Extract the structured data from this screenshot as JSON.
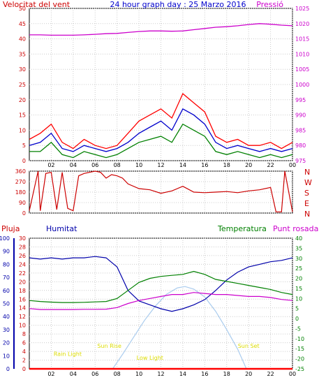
{
  "chart_data": [
    {
      "type": "line",
      "id": "wind-pressure",
      "title": "24 hour graph day : 25 Marzo 2016",
      "ylabel_left": "Velocitat del vent",
      "ylabel_right": "Pressió",
      "x_ticks": [
        "02",
        "04",
        "06",
        "08",
        "10",
        "12",
        "14",
        "16",
        "18",
        "20",
        "22",
        "00"
      ],
      "ylim_left": [
        0,
        50
      ],
      "ylim_right": [
        975,
        1025
      ],
      "yticks_left": [
        0,
        5,
        10,
        15,
        20,
        25,
        30,
        35,
        40,
        45,
        50
      ],
      "yticks_right": [
        975,
        980,
        985,
        990,
        995,
        1000,
        1005,
        1010,
        1015,
        1020,
        1025
      ],
      "x_hours": [
        0,
        1,
        2,
        3,
        4,
        5,
        6,
        7,
        8,
        9,
        10,
        11,
        12,
        13,
        14,
        15,
        16,
        17,
        18,
        19,
        20,
        21,
        22,
        23,
        24
      ],
      "series": [
        {
          "name": "gust",
          "axis": "left",
          "color": "#ff0000",
          "values": [
            7,
            9,
            12,
            6,
            4,
            7,
            5,
            4,
            5,
            9,
            13,
            15,
            17,
            14,
            22,
            19,
            16,
            8,
            6,
            7,
            5,
            5,
            6,
            4,
            6
          ]
        },
        {
          "name": "avg",
          "axis": "left",
          "color": "#0000cc",
          "values": [
            5,
            6,
            9,
            4,
            3,
            5,
            4,
            3,
            4,
            6,
            9,
            11,
            13,
            10,
            17,
            15,
            12,
            6,
            4,
            5,
            4,
            3,
            4,
            3,
            4
          ]
        },
        {
          "name": "min",
          "axis": "left",
          "color": "#008000",
          "values": [
            3,
            3,
            6,
            2,
            1,
            3,
            2,
            1,
            2,
            4,
            6,
            7,
            8,
            6,
            12,
            10,
            8,
            3,
            2,
            3,
            2,
            1,
            2,
            1,
            2
          ]
        },
        {
          "name": "pressure",
          "axis": "right",
          "color": "#cc00cc",
          "values": [
            1016.3,
            1016.3,
            1016.2,
            1016.2,
            1016.2,
            1016.3,
            1016.5,
            1016.7,
            1016.8,
            1017.1,
            1017.4,
            1017.6,
            1017.6,
            1017.5,
            1017.6,
            1018.0,
            1018.4,
            1018.8,
            1019.0,
            1019.3,
            1019.7,
            1020.0,
            1019.8,
            1019.5,
            1019.3
          ]
        }
      ]
    },
    {
      "type": "line",
      "id": "wind-direction",
      "x_ticks": [
        "02",
        "04",
        "06",
        "08",
        "10",
        "12",
        "14",
        "16",
        "18",
        "20",
        "22",
        "00"
      ],
      "ylim": [
        0,
        360
      ],
      "yticks": [
        0,
        90,
        180,
        270,
        360
      ],
      "compass_labels": [
        "N",
        "W",
        "S",
        "E",
        "N"
      ],
      "x_hours": [
        0,
        0.8,
        1,
        1.5,
        2,
        2.5,
        3,
        3.5,
        4,
        4.5,
        5,
        6,
        6.5,
        7,
        7.5,
        8,
        8.5,
        9,
        10,
        11,
        12,
        13,
        14,
        15,
        16,
        17,
        18,
        19,
        20,
        21,
        22,
        22.5,
        23,
        23.3,
        24
      ],
      "values": [
        20,
        360,
        20,
        340,
        350,
        30,
        350,
        40,
        20,
        320,
        340,
        360,
        350,
        300,
        330,
        320,
        300,
        250,
        210,
        200,
        170,
        190,
        230,
        180,
        175,
        180,
        185,
        175,
        190,
        200,
        220,
        10,
        10,
        360,
        10
      ]
    },
    {
      "type": "line",
      "id": "rain-humidity-temp",
      "ylabel_rain": "Pluja",
      "ylabel_humidity": "Humitat",
      "ylabel_temp": "Temperatura",
      "ylabel_dew": "Punt rosada",
      "x_ticks": [
        "02",
        "04",
        "06",
        "08",
        "10",
        "12",
        "14",
        "16",
        "18",
        "20",
        "22",
        "00"
      ],
      "ylim_humidity": [
        0,
        100
      ],
      "ylim_rain": [
        0,
        30
      ],
      "ylim_temp": [
        -25,
        40
      ],
      "yticks_humidity": [
        0,
        10,
        20,
        30,
        40,
        50,
        60,
        70,
        80,
        90,
        100
      ],
      "yticks_rain": [
        0,
        2,
        4,
        6,
        8,
        10,
        12,
        14,
        16,
        18,
        20,
        22,
        24,
        26,
        28,
        30
      ],
      "yticks_temp": [
        -25,
        -20,
        -15,
        -10,
        -5,
        0,
        5,
        10,
        15,
        20,
        25,
        30,
        35,
        40
      ],
      "x_hours": [
        0,
        1,
        2,
        3,
        4,
        5,
        6,
        7,
        8,
        9,
        10,
        11,
        12,
        13,
        14,
        15,
        16,
        17,
        18,
        19,
        20,
        21,
        22,
        23,
        24
      ],
      "series": [
        {
          "name": "humidity",
          "axis": "humidity",
          "color": "#0000aa",
          "values": [
            85,
            84,
            85,
            84,
            85,
            85,
            86,
            85,
            78,
            60,
            52,
            49,
            46,
            44,
            46,
            49,
            53,
            60,
            68,
            74,
            78,
            80,
            82,
            83,
            85
          ]
        },
        {
          "name": "temperature",
          "axis": "temp",
          "color": "#008000",
          "values": [
            9,
            8.5,
            8.2,
            8,
            8,
            8.1,
            8.3,
            8.5,
            10,
            14,
            18,
            20,
            21,
            21.5,
            22,
            23.5,
            22,
            19.5,
            18.5,
            17.5,
            16.5,
            15.5,
            14.5,
            13,
            12
          ]
        },
        {
          "name": "dew point",
          "axis": "temp",
          "color": "#cc00cc",
          "values": [
            5,
            4.5,
            4.5,
            4.5,
            4.5,
            4.6,
            4.6,
            4.7,
            5.5,
            7.5,
            9,
            10,
            11,
            12,
            12,
            13,
            12.5,
            12,
            12,
            11.5,
            11,
            11,
            10.5,
            9.5,
            9
          ]
        }
      ],
      "rain_values": [
        0,
        0,
        0,
        0,
        0,
        0,
        0,
        0,
        0,
        0,
        0,
        0,
        0,
        0,
        0,
        0,
        0,
        0,
        0,
        0,
        0,
        0,
        0,
        0,
        0
      ],
      "sun_curve": {
        "x_hours": [
          7.6,
          8.5,
          9.5,
          10.5,
          11.5,
          12.5,
          13.5,
          14.2,
          15,
          16,
          17,
          18,
          19,
          19.8
        ],
        "values": [
          0,
          11,
          24,
          37,
          48,
          57,
          62,
          63,
          61,
          55,
          44,
          30,
          15,
          0
        ]
      },
      "annotations": [
        {
          "text": "Sun Rise",
          "hour": 7.3,
          "value": 16
        },
        {
          "text": "Sun Set",
          "hour": 20,
          "value": 16
        },
        {
          "text": "Rain Light",
          "hour": 3.5,
          "value": 10
        },
        {
          "text": "Low Light",
          "hour": 11,
          "value": 7
        }
      ]
    }
  ]
}
